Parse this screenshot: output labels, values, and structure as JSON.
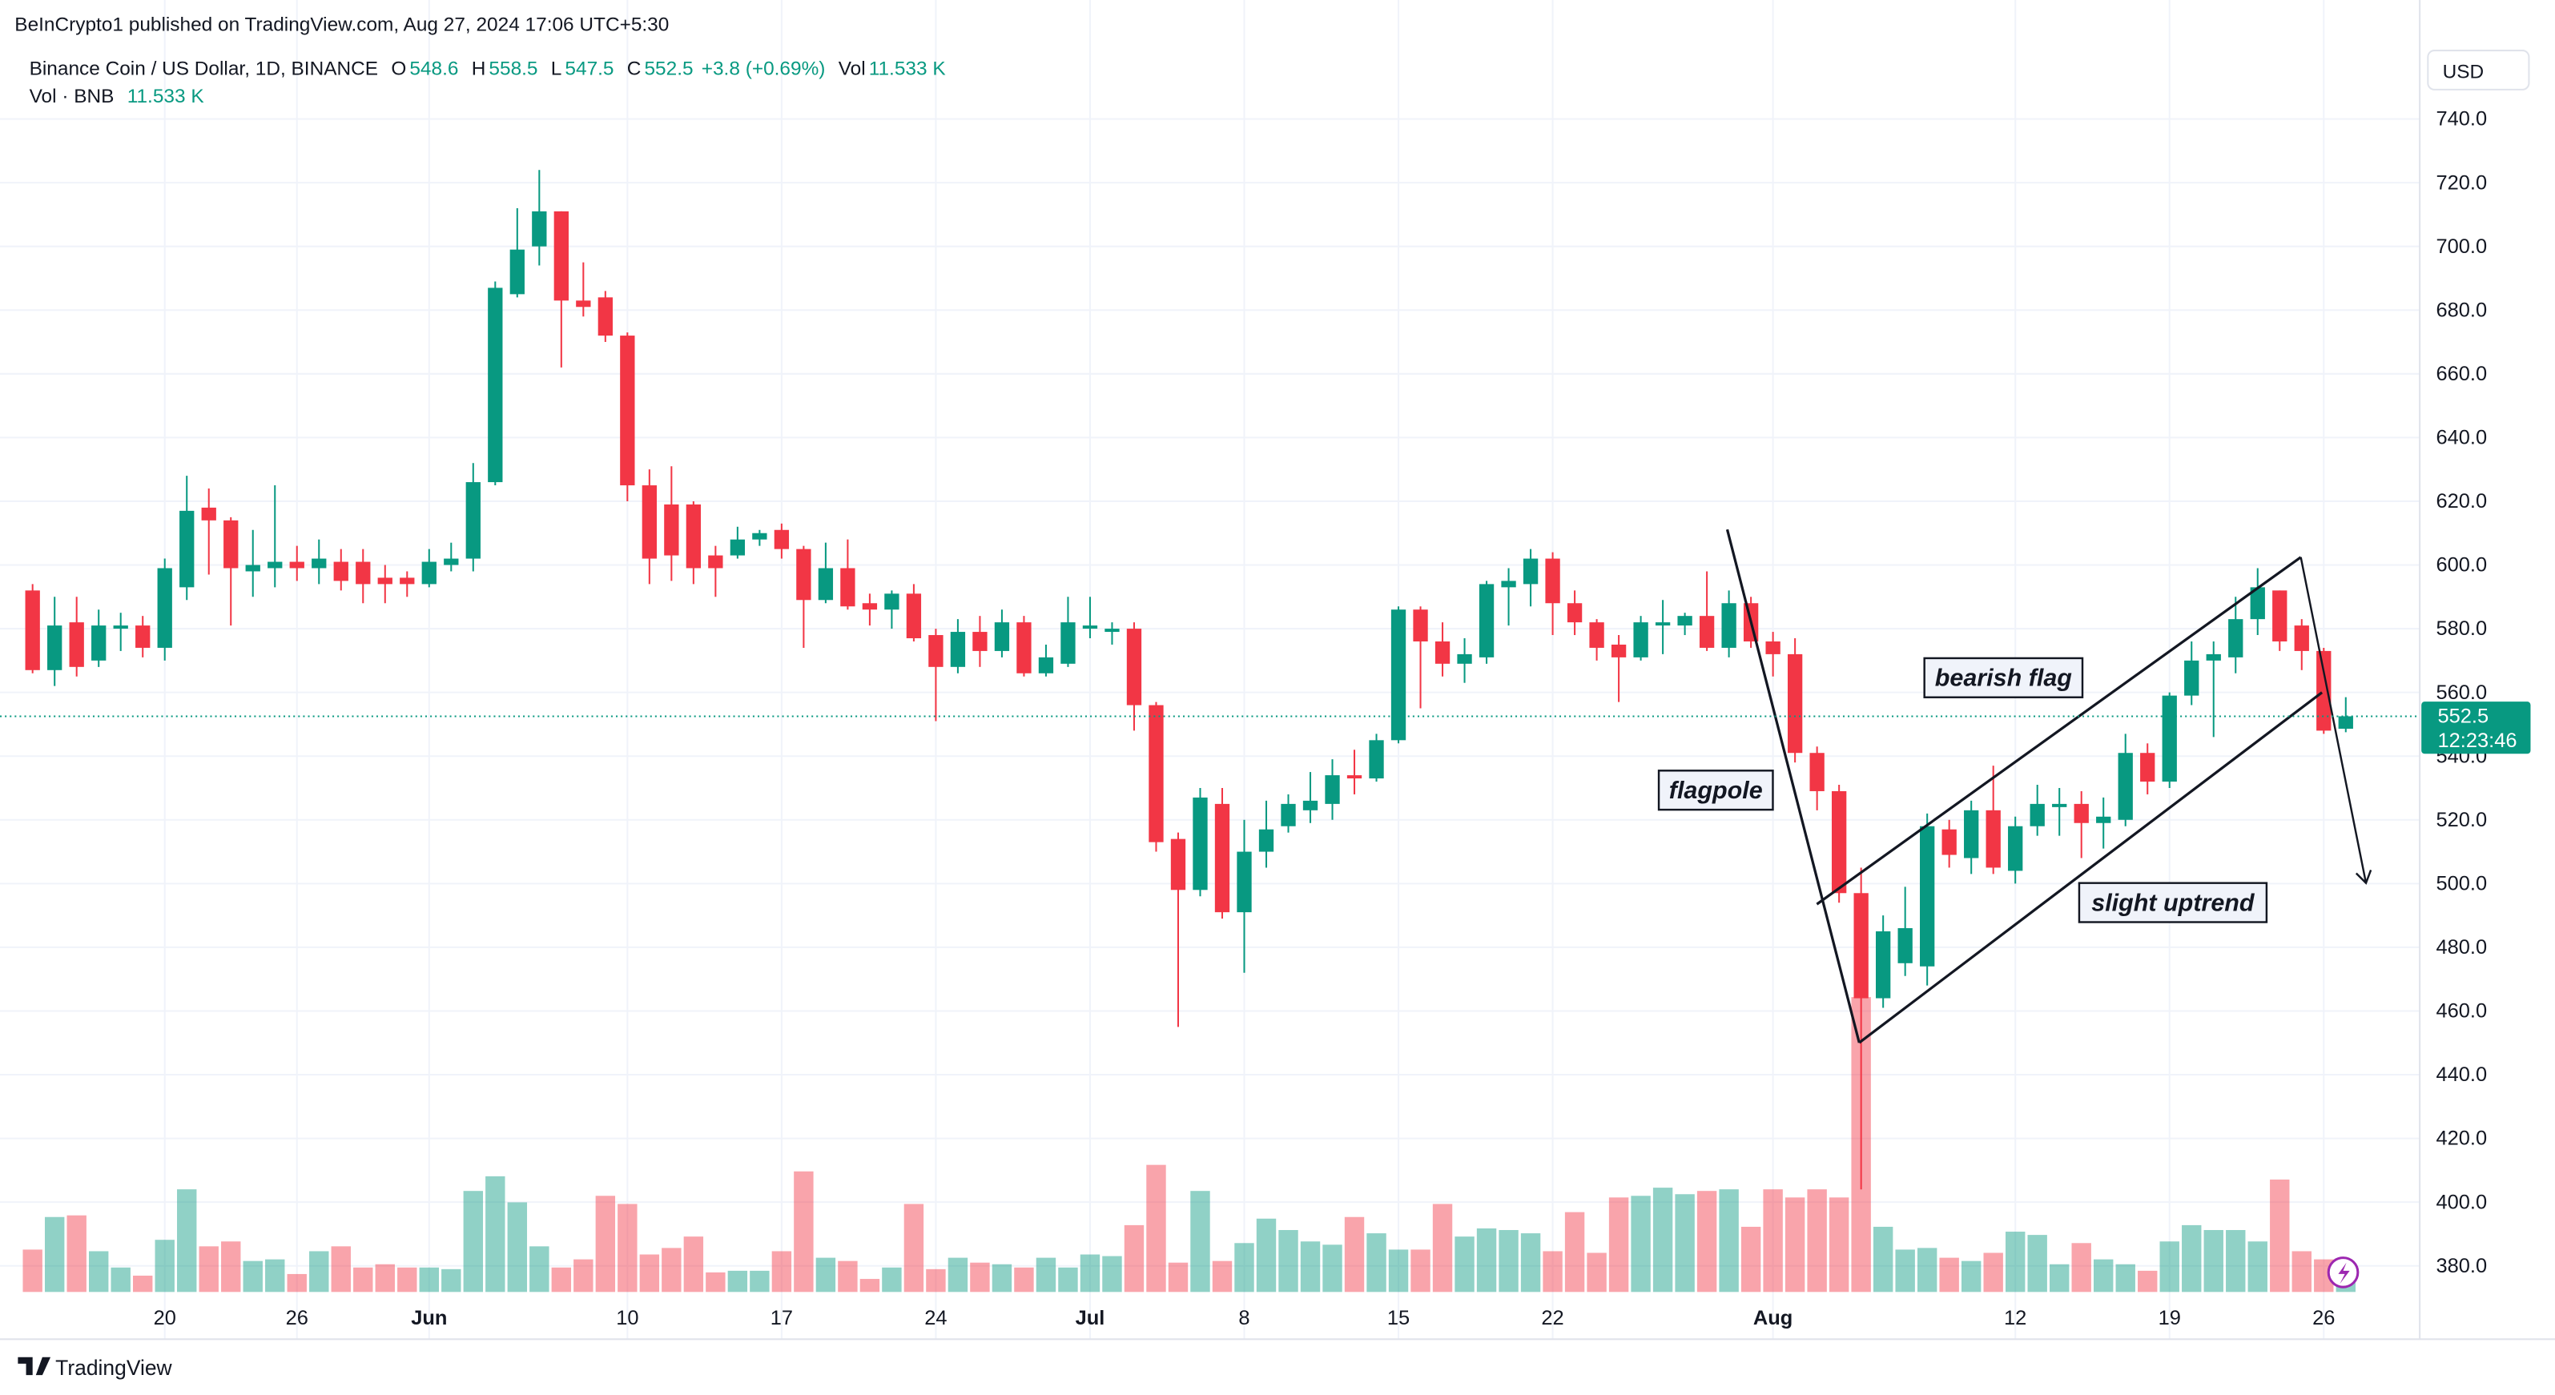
{
  "header": {
    "published": "BeInCrypto1 published on TradingView.com, Aug 27, 2024 17:06 UTC+5:30"
  },
  "chart_data": {
    "type": "candlestick",
    "title": "Binance Coin / US Dollar, 1D, BINANCE",
    "legend": {
      "ohlc": [
        {
          "label": "O",
          "value": 548.6
        },
        {
          "label": "H",
          "value": 558.5
        },
        {
          "label": "L",
          "value": 547.5
        },
        {
          "label": "C",
          "value": 552.5
        }
      ],
      "change": "+3.8 (+0.69%)",
      "vol_label": "Vol",
      "vol_value": "11.533 K"
    },
    "volume_label": "Vol · BNB",
    "volume_value": "11.533 K",
    "categories": [
      null,
      null,
      null,
      null,
      null,
      null,
      "20",
      null,
      null,
      null,
      null,
      null,
      "26",
      null,
      null,
      null,
      null,
      null,
      "Jun",
      null,
      null,
      null,
      null,
      null,
      null,
      null,
      null,
      "10",
      null,
      null,
      null,
      null,
      null,
      null,
      "17",
      null,
      null,
      null,
      null,
      null,
      null,
      "24",
      null,
      null,
      null,
      null,
      null,
      null,
      "Jul",
      null,
      null,
      null,
      null,
      null,
      null,
      "8",
      null,
      null,
      null,
      null,
      null,
      null,
      "15",
      null,
      null,
      null,
      null,
      null,
      null,
      "22",
      null,
      null,
      null,
      null,
      null,
      null,
      null,
      null,
      null,
      "Aug",
      null,
      null,
      null,
      null,
      null,
      null,
      null,
      null,
      null,
      null,
      "12",
      null,
      null,
      null,
      null,
      null,
      null,
      "19",
      null,
      null,
      null,
      null,
      null,
      null,
      "26",
      null
    ],
    "open": [
      592,
      567,
      582,
      570,
      580,
      581,
      574,
      593,
      618,
      614,
      598,
      599,
      601,
      599,
      601,
      601,
      596,
      596,
      594,
      600,
      602,
      626,
      685,
      700,
      711,
      683,
      684,
      672,
      625,
      619,
      619,
      603,
      603,
      608,
      611,
      605,
      589,
      599,
      588,
      586,
      591,
      578,
      568,
      579,
      573,
      582,
      566,
      569,
      580,
      579,
      580,
      556,
      514,
      498,
      525,
      491,
      510,
      518,
      523,
      525,
      534,
      533,
      545,
      586,
      576,
      569,
      571,
      593,
      594,
      602,
      588,
      582,
      575,
      571,
      581,
      581,
      584,
      574,
      588,
      576,
      572,
      541,
      529,
      497,
      464,
      475,
      474,
      517,
      508,
      523,
      504,
      518,
      524,
      525,
      519,
      520,
      541,
      532,
      559,
      570,
      571,
      583,
      592,
      581,
      573,
      548.6
    ],
    "high": [
      594,
      590,
      590,
      586,
      585,
      584,
      602,
      628,
      624,
      615,
      611,
      625,
      606,
      608,
      605,
      605,
      600,
      598,
      605,
      607,
      632,
      689,
      712,
      724,
      711,
      695,
      686,
      673,
      630,
      631,
      620,
      606,
      612,
      611,
      613,
      606,
      607,
      608,
      591,
      592,
      594,
      580,
      583,
      584,
      586,
      584,
      575,
      590,
      590,
      582,
      582,
      557,
      516,
      530,
      530,
      520,
      526,
      528,
      535,
      539,
      542,
      547,
      587,
      587,
      582,
      577,
      595,
      599,
      605,
      604,
      592,
      583,
      578,
      584,
      589,
      585,
      598,
      592,
      590,
      579,
      577,
      543,
      531,
      505,
      490,
      499,
      522,
      520,
      526,
      537,
      521,
      531,
      530,
      529,
      527,
      547,
      544,
      560,
      576,
      576,
      590,
      599,
      592,
      583,
      574,
      558.5
    ],
    "low": [
      566,
      562,
      565,
      568,
      573,
      571,
      570,
      589,
      597,
      581,
      590,
      593,
      595,
      594,
      592,
      588,
      588,
      590,
      593,
      598,
      598,
      625,
      684,
      694,
      662,
      678,
      670,
      620,
      594,
      595,
      594,
      590,
      602,
      606,
      602,
      574,
      588,
      586,
      581,
      580,
      576,
      551,
      566,
      568,
      571,
      565,
      565,
      568,
      577,
      575,
      548,
      510,
      455,
      496,
      489,
      472,
      505,
      516,
      519,
      520,
      528,
      532,
      544,
      555,
      565,
      563,
      569,
      581,
      587,
      578,
      578,
      570,
      557,
      570,
      572,
      578,
      573,
      571,
      574,
      565,
      538,
      523,
      494,
      404,
      461,
      471,
      468,
      505,
      503,
      503,
      500,
      515,
      515,
      508,
      511,
      518,
      528,
      530,
      556,
      546,
      566,
      578,
      573,
      567,
      547,
      547.5
    ],
    "close": [
      567,
      581,
      568,
      581,
      581,
      574,
      599,
      617,
      614,
      599,
      600,
      601,
      599,
      602,
      595,
      594,
      594,
      594,
      601,
      602,
      626,
      687,
      699,
      711,
      683,
      681,
      672,
      625,
      602,
      603,
      599,
      599,
      608,
      610,
      605,
      589,
      599,
      587,
      586,
      591,
      577,
      568,
      579,
      573,
      582,
      566,
      571,
      582,
      581,
      580,
      556,
      513,
      498,
      527,
      491,
      510,
      517,
      525,
      526,
      534,
      533,
      545,
      586,
      576,
      569,
      572,
      594,
      595,
      602,
      588,
      582,
      574,
      571,
      582,
      582,
      584,
      574,
      588,
      576,
      572,
      541,
      529,
      497,
      464,
      485,
      486,
      518,
      509,
      523,
      505,
      518,
      525,
      525,
      519,
      521,
      541,
      532,
      559,
      570,
      572,
      583,
      593,
      576,
      573,
      548,
      552.5
    ],
    "volume": [
      39,
      69,
      70.5,
      37.5,
      22.5,
      15,
      48,
      94.5,
      42,
      46.5,
      28.5,
      30,
      16.5,
      37.5,
      42,
      22.5,
      25.5,
      22.5,
      22.5,
      21,
      93,
      106.5,
      82.5,
      42,
      22.5,
      30,
      88.5,
      81,
      34.5,
      40.5,
      51,
      18,
      19.5,
      19.5,
      37.5,
      111,
      31.5,
      28.5,
      12,
      22.5,
      81,
      21,
      31.5,
      27,
      25.5,
      22.5,
      31.5,
      22.5,
      34.5,
      33,
      61.5,
      117,
      27,
      93,
      28.5,
      45,
      67.5,
      57,
      46.5,
      43.5,
      69,
      54,
      39,
      39,
      81,
      51,
      58.5,
      57,
      54,
      37.5,
      73.5,
      36,
      87,
      88.5,
      96,
      90,
      93,
      94.5,
      60,
      94.5,
      87,
      94.5,
      87,
      271.5,
      60,
      39,
      40.5,
      31.5,
      28.5,
      36,
      55.5,
      52.5,
      25.5,
      45,
      30,
      25.5,
      19.5,
      46.5,
      61.5,
      57,
      57,
      46.5,
      103.5,
      37.5,
      30,
      11.533
    ],
    "ylim": [
      358,
      762
    ],
    "yticks": [
      {
        "value": 380,
        "label": "380.0"
      },
      {
        "value": 400,
        "label": "400.0"
      },
      {
        "value": 420,
        "label": "420.0"
      },
      {
        "value": 440,
        "label": "440.0"
      },
      {
        "value": 460,
        "label": "460.0"
      },
      {
        "value": 480,
        "label": "480.0"
      },
      {
        "value": 500,
        "label": "500.0"
      },
      {
        "value": 520,
        "label": "520.0"
      },
      {
        "value": 540,
        "label": "540.0"
      },
      {
        "value": 560,
        "label": "560.0"
      },
      {
        "value": 580,
        "label": "580.0"
      },
      {
        "value": 600,
        "label": "600.0"
      },
      {
        "value": 620,
        "label": "620.0"
      },
      {
        "value": 640,
        "label": "640.0"
      },
      {
        "value": 660,
        "label": "660.0"
      },
      {
        "value": 680,
        "label": "680.0"
      },
      {
        "value": 700,
        "label": "700.0"
      },
      {
        "value": 720,
        "label": "720.0"
      },
      {
        "value": 740,
        "label": "740.0"
      }
    ],
    "grid": true,
    "up_color": "#089981",
    "down_color": "#f23645",
    "currency": "USD",
    "last_price": 552.5,
    "countdown": "12:23:46",
    "annotations": [
      "bearish flag",
      "flagpole",
      "slight uptrend"
    ]
  },
  "footer": {
    "brand": "TradingView"
  }
}
